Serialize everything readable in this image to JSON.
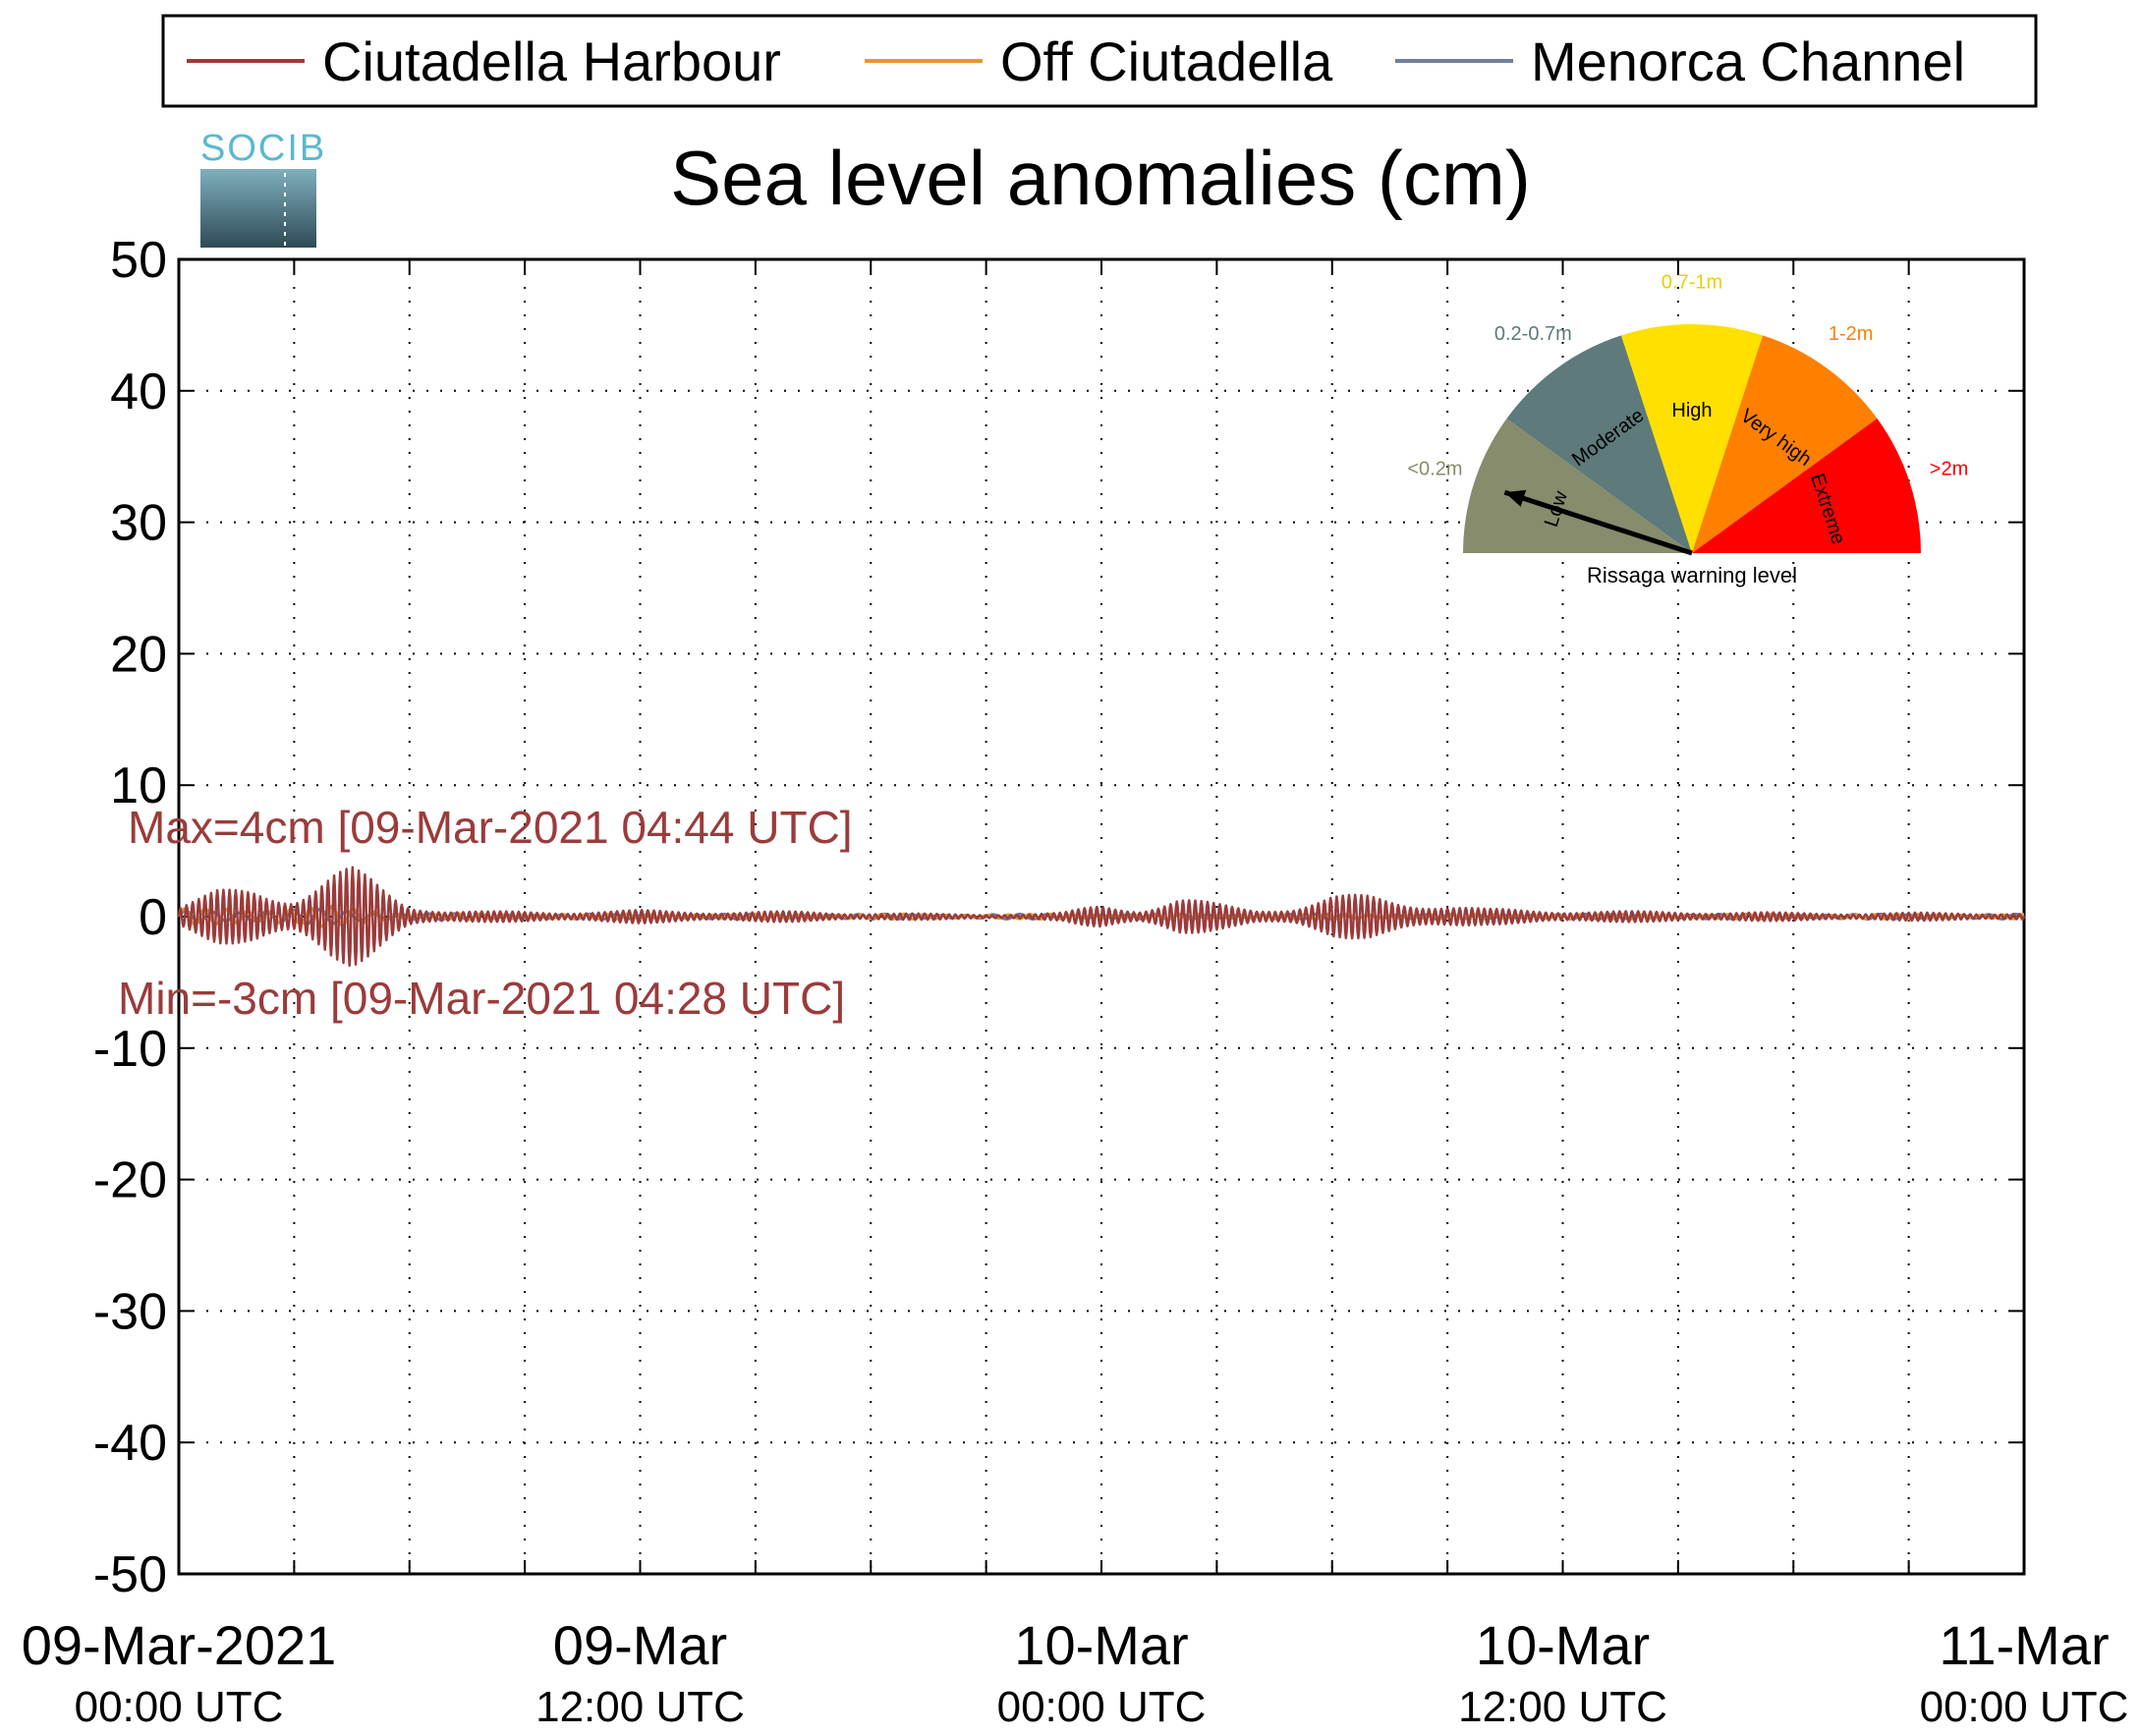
{
  "title": "Sea level anomalies (cm)",
  "logo_text": "SOCIB",
  "legend": [
    {
      "label": "Ciutadella Harbour",
      "color": "#9b3b3b"
    },
    {
      "label": "Off Ciutadella",
      "color": "#e39a2a"
    },
    {
      "label": "Menorca Channel",
      "color": "#6f7e9a"
    }
  ],
  "annotations": {
    "max": "Max=4cm [09-Mar-2021 04:44 UTC]",
    "min": "Min=-3cm [09-Mar-2021 04:28 UTC]",
    "color": "#9b3b3b"
  },
  "gauge": {
    "caption": "Rissaga warning level",
    "level_indicated": "Low",
    "sectors": [
      {
        "name": "Low",
        "range": "<0.2m",
        "color": "#868c6c"
      },
      {
        "name": "Moderate",
        "range": "0.2-0.7m",
        "color": "#5e7a7a"
      },
      {
        "name": "High",
        "range": "0.7-1m",
        "color": "#ffe000"
      },
      {
        "name": "Very high",
        "range": "1-2m",
        "color": "#ff8000"
      },
      {
        "name": "Extreme",
        "range": ">2m",
        "color": "#ff0000"
      }
    ]
  },
  "chart_data": {
    "type": "line",
    "title": "Sea level anomalies (cm)",
    "xlabel": "",
    "ylabel": "",
    "ylim": [
      -50,
      50
    ],
    "yticks": [
      50,
      40,
      30,
      20,
      10,
      0,
      -10,
      -20,
      -30,
      -40,
      -50
    ],
    "xlim_hours": [
      0,
      48
    ],
    "grid": true,
    "legend_position": "top",
    "x_tick_labels": [
      {
        "main": "09-Mar-2021",
        "sub": "00:00 UTC"
      },
      {
        "main": "09-Mar",
        "sub": "12:00 UTC"
      },
      {
        "main": "10-Mar",
        "sub": "00:00 UTC"
      },
      {
        "main": "10-Mar",
        "sub": "12:00 UTC"
      },
      {
        "main": "11-Mar",
        "sub": "00:00 UTC"
      }
    ],
    "series": [
      {
        "name": "Ciutadella Harbour",
        "envelope_hours": [
          0,
          1,
          2,
          3,
          4,
          4.5,
          5,
          6,
          7,
          8,
          10,
          12,
          14,
          16,
          18,
          20,
          22,
          23,
          24,
          25,
          26,
          27,
          28,
          29,
          30,
          31,
          32,
          34,
          36,
          38,
          40,
          42,
          44,
          46,
          48
        ],
        "envelope_cm": [
          0.8,
          2.0,
          2.5,
          1.8,
          3.5,
          3.8,
          3.0,
          1.0,
          0.5,
          0.4,
          0.4,
          0.5,
          0.4,
          0.4,
          0.3,
          0.2,
          0.2,
          0.3,
          1.0,
          0.6,
          1.5,
          1.0,
          0.6,
          0.8,
          1.6,
          1.7,
          1.3,
          0.6,
          0.5,
          0.4,
          0.4,
          0.3,
          0.3,
          0.3,
          0.3
        ]
      },
      {
        "name": "Off Ciutadella",
        "envelope_hours": [
          0,
          2,
          4,
          6,
          8,
          12,
          24,
          36,
          48
        ],
        "envelope_cm": [
          0.6,
          0.8,
          0.8,
          0.3,
          0.2,
          0.2,
          0.2,
          0.2,
          0.2
        ]
      },
      {
        "name": "Menorca Channel",
        "envelope_hours": [
          0,
          2,
          4,
          6,
          8,
          12,
          24,
          36,
          48
        ],
        "envelope_cm": [
          0.5,
          0.6,
          0.6,
          0.3,
          0.2,
          0.2,
          0.2,
          0.2,
          0.2
        ]
      }
    ]
  }
}
